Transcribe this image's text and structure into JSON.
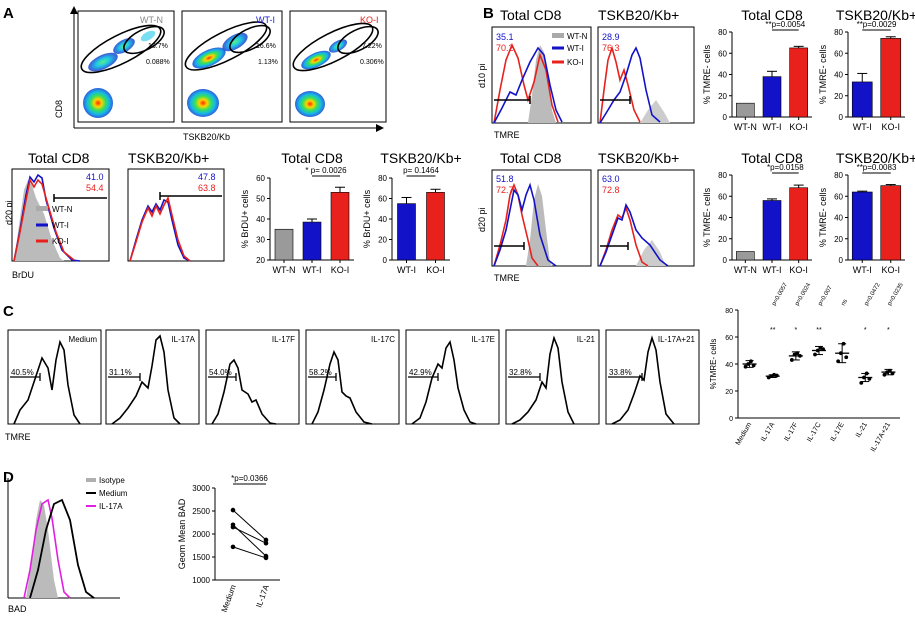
{
  "panels": {
    "A": {
      "letter": "A",
      "flow_headers": [
        "WT-N",
        "WT-I",
        "KO-I"
      ],
      "flow_header_colors": [
        "#888888",
        "#1a1adf",
        "#e8211d"
      ],
      "flow_gates": [
        [
          "13.7%",
          "0.088%"
        ],
        [
          "16.6%",
          "1.13%"
        ],
        [
          "7.22%",
          "0.306%"
        ]
      ],
      "flow_xlabel": "TSKB20/Kb",
      "flow_ylabel": "CD8",
      "hist_ylabel": "d20 pi",
      "hist_xlabel": "BrDU",
      "hist_titles": [
        "Total CD8",
        "TSKB20/Kb+"
      ],
      "hist1_values": {
        "blue": "41.0",
        "red": "54.4"
      },
      "hist2_values": {
        "blue": "47.8",
        "red": "63.8"
      },
      "legend": [
        "WT-N",
        "WT-I",
        "KO-I"
      ]
    },
    "B": {
      "letter": "B",
      "row_labels": [
        "d10 pi",
        "d20 pi"
      ],
      "xlabel": "TMRE",
      "hist_titles": [
        "Total CD8",
        "TSKB20/Kb+"
      ],
      "row1_values": {
        "h1_blue": "35.1",
        "h1_red": "70.2",
        "h2_blue": "28.9",
        "h2_red": "76.3"
      },
      "row2_values": {
        "h1_blue": "51.8",
        "h1_red": "72.7",
        "h2_blue": "63.0",
        "h2_red": "72.8"
      },
      "legend": [
        "WT-N",
        "WT-I",
        "KO-I"
      ]
    },
    "C": {
      "letter": "C",
      "xlabel": "TMRE",
      "hist_labels": [
        "Medium",
        "IL-17A",
        "IL-17F",
        "IL-17C",
        "IL-17E",
        "IL-21",
        "IL-17A+21"
      ],
      "hist_percents": [
        "40.5%",
        "31.1%",
        "54.0%",
        "58.2%",
        "42.9%",
        "32.8%",
        "33.8%"
      ]
    },
    "D": {
      "letter": "D",
      "xlabel": "BAD",
      "legend": [
        "Isotype",
        "Medium",
        "IL-17A"
      ],
      "legend_colors": [
        "#b0b0b0",
        "#000000",
        "#e01fe0"
      ]
    }
  },
  "chart_data": [
    {
      "id": "A-total-cd8-brdu",
      "type": "bar",
      "title": "Total CD8",
      "ylabel": "% BrDU+ cells",
      "categories": [
        "WT-N",
        "WT-I",
        "KO-I"
      ],
      "values": [
        35,
        38.5,
        53
      ],
      "errors": [
        0,
        1.5,
        2.5
      ],
      "colors": [
        "#9a9a9a",
        "#1212c8",
        "#e8211d"
      ],
      "ylim": [
        20,
        60
      ],
      "yticks": [
        20,
        30,
        40,
        50,
        60
      ],
      "annotation": {
        "text": "* p= 0.0026",
        "from": 1,
        "to": 2
      }
    },
    {
      "id": "A-tskb-brdu",
      "type": "bar",
      "title": "TSKB20/Kb+",
      "ylabel": "% BrDU+ cells",
      "categories": [
        "WT-I",
        "KO-I"
      ],
      "values": [
        55,
        66
      ],
      "errors": [
        6,
        3
      ],
      "colors": [
        "#1212c8",
        "#e8211d"
      ],
      "ylim": [
        0,
        80
      ],
      "yticks": [
        0,
        20,
        40,
        60,
        80
      ],
      "annotation": {
        "text": "p= 0.1464",
        "from": 0,
        "to": 1
      }
    },
    {
      "id": "B-total-cd8-d10",
      "type": "bar",
      "title": "Total CD8",
      "ylabel": "% TMRE- cells",
      "categories": [
        "WT-N",
        "WT-I",
        "KO-I"
      ],
      "values": [
        13,
        38,
        65
      ],
      "errors": [
        0,
        5,
        1.5
      ],
      "colors": [
        "#9a9a9a",
        "#1212c8",
        "#e8211d"
      ],
      "ylim": [
        0,
        80
      ],
      "yticks": [
        0,
        20,
        40,
        60,
        80
      ],
      "annotation": {
        "text": "**p=0.0054",
        "from": 1,
        "to": 2
      }
    },
    {
      "id": "B-tskb-d10",
      "type": "bar",
      "title": "TSKB20/Kb+",
      "ylabel": "% TMRE- cells",
      "categories": [
        "WT-I",
        "KO-I"
      ],
      "values": [
        33,
        74
      ],
      "errors": [
        8,
        1.5
      ],
      "colors": [
        "#1212c8",
        "#e8211d"
      ],
      "ylim": [
        0,
        80
      ],
      "yticks": [
        0,
        20,
        40,
        60,
        80
      ],
      "annotation": {
        "text": "**p=0.0029",
        "from": 0,
        "to": 1
      }
    },
    {
      "id": "B-total-cd8-d20",
      "type": "bar",
      "title": "Total CD8",
      "ylabel": "% TMRE- cells",
      "categories": [
        "WT-N",
        "WT-I",
        "KO-I"
      ],
      "values": [
        8,
        56,
        68
      ],
      "errors": [
        0,
        1.5,
        2.5
      ],
      "colors": [
        "#9a9a9a",
        "#1212c8",
        "#e8211d"
      ],
      "ylim": [
        0,
        80
      ],
      "yticks": [
        0,
        20,
        40,
        60,
        80
      ],
      "annotation": {
        "text": "*p=0.0158",
        "from": 1,
        "to": 2
      }
    },
    {
      "id": "B-tskb-d20",
      "type": "bar",
      "title": "TSKB20/Kb+",
      "ylabel": "% TMRE- cells",
      "categories": [
        "WT-I",
        "KO-I"
      ],
      "values": [
        64,
        70
      ],
      "errors": [
        0.8,
        1
      ],
      "colors": [
        "#1212c8",
        "#e8211d"
      ],
      "ylim": [
        0,
        80
      ],
      "yticks": [
        0,
        20,
        40,
        60,
        80
      ],
      "annotation": {
        "text": "**p=0.0083",
        "from": 0,
        "to": 1
      }
    },
    {
      "id": "C-tmre-scatter",
      "type": "scatter",
      "ylabel": "%TMRE- cells",
      "categories": [
        "Medium",
        "IL-17A",
        "IL-17F",
        "IL-17C",
        "IL-17E",
        "IL-21",
        "IL-17A+21"
      ],
      "means": [
        40,
        31,
        46,
        50,
        48,
        30,
        34
      ],
      "sds": [
        2.5,
        1,
        3,
        3,
        7,
        3,
        2
      ],
      "points": [
        [
          38,
          40,
          42,
          39
        ],
        [
          30,
          31,
          32,
          31.5
        ],
        [
          43,
          47,
          48,
          46
        ],
        [
          47,
          50,
          52,
          51
        ],
        [
          42,
          48,
          55,
          45
        ],
        [
          26,
          30,
          33,
          29
        ],
        [
          32,
          34,
          35,
          33
        ]
      ],
      "pvalues": [
        "",
        "p=0.0057",
        "p=0.0024",
        "p=0.007",
        "ns",
        "p=0.0472",
        "p=0.0235"
      ],
      "stars": [
        "",
        "**",
        "*",
        "**",
        "",
        "*",
        "*"
      ],
      "ylim": [
        0,
        80
      ],
      "yticks": [
        0,
        20,
        40,
        60,
        80
      ]
    },
    {
      "id": "D-bad-paired",
      "type": "line",
      "ylabel": "Geom Mean BAD",
      "categories": [
        "Medium",
        "IL-17A"
      ],
      "pairs": [
        [
          2520,
          1870
        ],
        [
          2200,
          1520
        ],
        [
          2150,
          1800
        ],
        [
          1720,
          1480
        ]
      ],
      "ylim": [
        1000,
        3000
      ],
      "yticks": [
        1000,
        1500,
        2000,
        2500,
        3000
      ],
      "annotation": {
        "text": "*p=0.0366",
        "from": 0,
        "to": 1
      }
    }
  ]
}
